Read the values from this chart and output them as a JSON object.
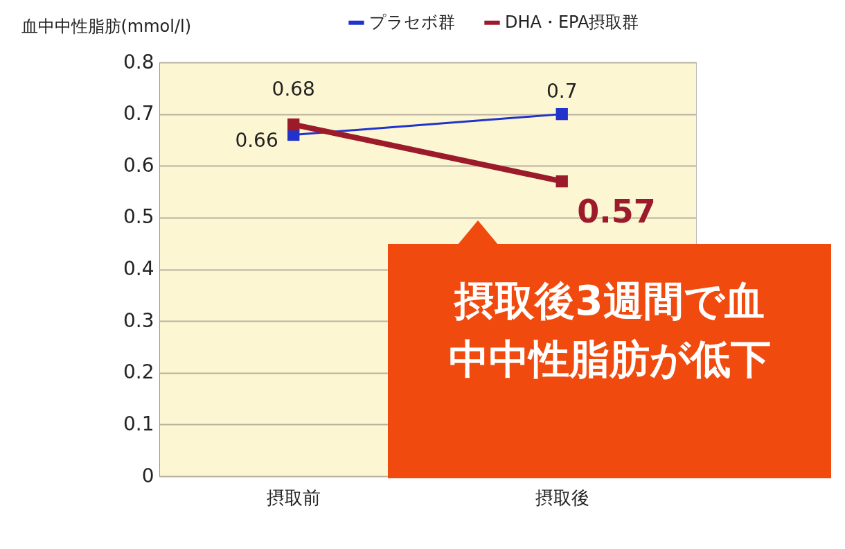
{
  "chart_data": {
    "type": "line",
    "ylabel": "血中中性脂肪(mmol/l)",
    "categories": [
      "摂取前",
      "摂取後"
    ],
    "series": [
      {
        "name": "プラセボ群",
        "color": "#2233cc",
        "values": [
          0.66,
          0.7
        ]
      },
      {
        "name": "DHA・EPA摂取群",
        "color": "#9b1b2a",
        "values": [
          0.68,
          0.57
        ]
      }
    ],
    "ylim": [
      0,
      0.8
    ],
    "yticks": [
      0,
      0.1,
      0.2,
      0.3,
      0.4,
      0.5,
      0.6,
      0.7,
      0.8
    ],
    "grid": "y",
    "legend": "top",
    "marker": "square",
    "data_labels": true,
    "annotations": [
      "摂取後3週間で血中中性脂肪が低下"
    ]
  }
}
